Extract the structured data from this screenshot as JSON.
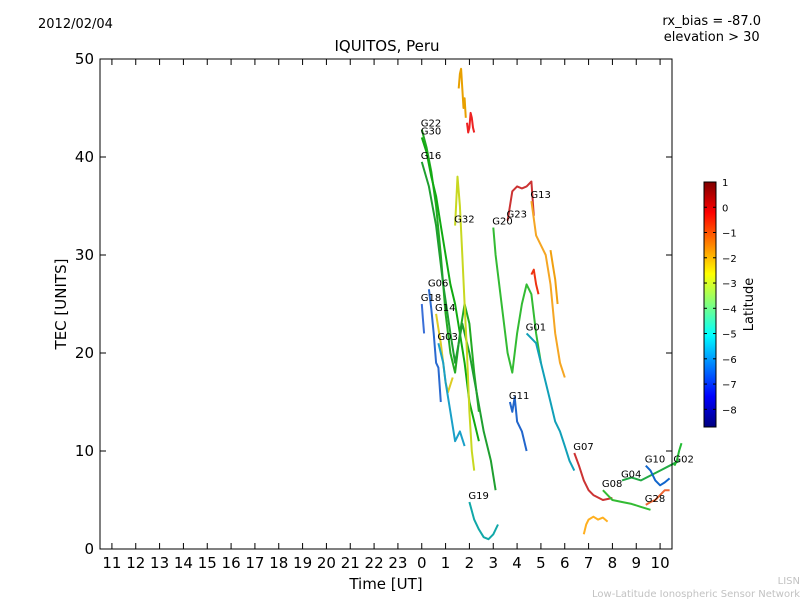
{
  "header": {
    "date": "2012/02/04",
    "title": "IQUITOS, Peru",
    "notes": [
      "rx_bias = -87.0",
      "elevation > 30"
    ]
  },
  "footer": [
    "LISN",
    "Low-Latitude Ionospheric Sensor Network"
  ],
  "chart_data": {
    "type": "line",
    "title": "IQUITOS, Peru",
    "xlabel": "Time [UT]",
    "ylabel": "TEC [UNITS]",
    "x_tick_labels": [
      "11",
      "12",
      "13",
      "14",
      "15",
      "16",
      "17",
      "18",
      "19",
      "20",
      "21",
      "22",
      "23",
      "0",
      "1",
      "2",
      "3",
      "4",
      "5",
      "6",
      "7",
      "8",
      "9",
      "10"
    ],
    "ylim": [
      0,
      50
    ],
    "y_ticks": [
      0,
      10,
      20,
      30,
      40,
      50
    ],
    "grid": false,
    "colorbar": {
      "label": "Latitude",
      "range": [
        -8.7,
        1.0
      ],
      "ticks": [
        1,
        0,
        -1,
        -2,
        -3,
        -4,
        -5,
        -6,
        -7,
        -8
      ],
      "colors": [
        "#00007f",
        "#0000ff",
        "#007fff",
        "#00ffff",
        "#7fff7f",
        "#ffff00",
        "#ff7f00",
        "#ff0000",
        "#7f0000"
      ]
    },
    "series": [
      {
        "name": "G22",
        "color": "#22aa22",
        "points": [
          [
            0.0,
            42.8
          ],
          [
            0.2,
            41.0
          ],
          [
            0.4,
            38.5
          ],
          [
            0.6,
            35.0
          ],
          [
            0.8,
            30.0
          ],
          [
            1.0,
            24.0
          ],
          [
            1.2,
            20.0
          ],
          [
            1.4,
            18.0
          ],
          [
            1.6,
            22.0
          ],
          [
            1.8,
            25.0
          ],
          [
            2.0,
            23.0
          ],
          [
            2.2,
            18.0
          ],
          [
            2.4,
            14.0
          ]
        ]
      },
      {
        "name": "G30",
        "color": "#11aa11",
        "points": [
          [
            0.0,
            42.0
          ],
          [
            0.2,
            40.5
          ],
          [
            0.4,
            38.0
          ],
          [
            0.6,
            36.0
          ],
          [
            0.8,
            33.0
          ],
          [
            1.0,
            30.0
          ],
          [
            1.2,
            27.0
          ],
          [
            1.4,
            25.0
          ],
          [
            1.6,
            22.0
          ],
          [
            1.8,
            19.0
          ],
          [
            2.0,
            15.0
          ],
          [
            2.2,
            13.0
          ],
          [
            2.4,
            11.0
          ]
        ]
      },
      {
        "name": "G16",
        "color": "#1f9f30",
        "points": [
          [
            0.0,
            39.5
          ],
          [
            0.3,
            37.0
          ],
          [
            0.6,
            33.0
          ],
          [
            0.9,
            27.0
          ],
          [
            1.2,
            22.0
          ],
          [
            1.4,
            19.0
          ],
          [
            1.7,
            23.0
          ],
          [
            2.0,
            20.0
          ],
          [
            2.3,
            16.0
          ],
          [
            2.6,
            12.0
          ],
          [
            2.9,
            9.0
          ],
          [
            3.1,
            6.0
          ]
        ]
      },
      {
        "name": "G32",
        "color": "#c8d820",
        "points": [
          [
            1.4,
            33.0
          ],
          [
            1.5,
            38.0
          ],
          [
            1.6,
            35.0
          ],
          [
            1.7,
            30.0
          ],
          [
            1.8,
            25.0
          ],
          [
            1.9,
            20.0
          ],
          [
            2.0,
            14.0
          ],
          [
            2.1,
            10.0
          ],
          [
            2.2,
            8.0
          ]
        ]
      },
      {
        "name": "G20",
        "color": "#33bb33",
        "points": [
          [
            3.0,
            32.8
          ],
          [
            3.1,
            30.0
          ],
          [
            3.2,
            28.0
          ],
          [
            3.4,
            24.0
          ],
          [
            3.6,
            20.0
          ],
          [
            3.8,
            18.0
          ],
          [
            4.0,
            22.0
          ],
          [
            4.2,
            25.0
          ],
          [
            4.4,
            27.0
          ],
          [
            4.6,
            26.0
          ],
          [
            4.8,
            22.0
          ],
          [
            5.0,
            19.0
          ]
        ]
      },
      {
        "name": "G23",
        "color": "#cc3333",
        "points": [
          [
            3.6,
            33.5
          ],
          [
            3.8,
            36.5
          ],
          [
            4.0,
            37.0
          ],
          [
            4.2,
            36.8
          ],
          [
            4.4,
            37.0
          ],
          [
            4.6,
            37.5
          ],
          [
            4.7,
            34.0
          ]
        ]
      },
      {
        "name": "G13",
        "color": "#f5a623",
        "points": [
          [
            4.6,
            35.5
          ],
          [
            4.8,
            32.0
          ],
          [
            5.0,
            31.0
          ],
          [
            5.2,
            30.0
          ],
          [
            5.4,
            27.0
          ],
          [
            5.6,
            22.0
          ],
          [
            5.8,
            19.0
          ],
          [
            6.0,
            17.5
          ]
        ]
      },
      {
        "name": "G06",
        "color": "#2a6ad0",
        "points": [
          [
            0.3,
            26.5
          ],
          [
            0.4,
            24.5
          ],
          [
            0.5,
            22.0
          ],
          [
            0.6,
            19.0
          ],
          [
            0.7,
            18.5
          ],
          [
            0.8,
            15.0
          ]
        ]
      },
      {
        "name": "G18",
        "color": "#3a6fd8",
        "points": [
          [
            0.0,
            25.0
          ],
          [
            0.05,
            23.5
          ],
          [
            0.1,
            22.0
          ]
        ]
      },
      {
        "name": "G14",
        "color": "#ddcc22",
        "points": [
          [
            0.6,
            24.0
          ],
          [
            0.7,
            22.5
          ],
          [
            0.8,
            21.0
          ],
          [
            0.9,
            19.0
          ],
          [
            1.0,
            17.0
          ],
          [
            1.1,
            16.0
          ],
          [
            1.3,
            17.5
          ]
        ]
      },
      {
        "name": "G03",
        "color": "#1aa0c8",
        "points": [
          [
            0.7,
            21.0
          ],
          [
            0.9,
            19.0
          ],
          [
            1.0,
            17.0
          ],
          [
            1.2,
            14.0
          ],
          [
            1.4,
            11.0
          ],
          [
            1.6,
            12.0
          ],
          [
            1.8,
            10.5
          ]
        ]
      },
      {
        "name": "G01",
        "color": "#11a0b8",
        "points": [
          [
            4.4,
            22.0
          ],
          [
            4.6,
            21.5
          ],
          [
            4.8,
            21.0
          ],
          [
            5.0,
            19.0
          ],
          [
            5.2,
            17.0
          ],
          [
            5.4,
            15.0
          ],
          [
            5.6,
            13.0
          ],
          [
            5.8,
            12.0
          ],
          [
            6.0,
            10.5
          ],
          [
            6.2,
            9.0
          ],
          [
            6.4,
            8.0
          ]
        ]
      },
      {
        "name": "G11",
        "color": "#2266cc",
        "points": [
          [
            3.7,
            15.0
          ],
          [
            3.8,
            14.0
          ],
          [
            3.9,
            15.5
          ],
          [
            4.0,
            13.0
          ],
          [
            4.2,
            12.0
          ],
          [
            4.4,
            10.0
          ]
        ]
      },
      {
        "name": "G19",
        "color": "#11a8a8",
        "points": [
          [
            2.0,
            4.8
          ],
          [
            2.2,
            3.0
          ],
          [
            2.4,
            2.0
          ],
          [
            2.6,
            1.2
          ],
          [
            2.8,
            1.0
          ],
          [
            3.0,
            1.5
          ],
          [
            3.2,
            2.5
          ]
        ]
      },
      {
        "name": "G07",
        "color": "#cc3333",
        "points": [
          [
            6.4,
            9.8
          ],
          [
            6.6,
            8.5
          ],
          [
            6.8,
            7.0
          ],
          [
            7.0,
            6.0
          ],
          [
            7.2,
            5.5
          ],
          [
            7.6,
            5.0
          ],
          [
            8.0,
            5.2
          ]
        ]
      },
      {
        "name": "G08",
        "color": "#33bb33",
        "points": [
          [
            7.6,
            6.0
          ],
          [
            7.8,
            5.5
          ],
          [
            8.0,
            5.0
          ],
          [
            8.4,
            4.8
          ],
          [
            8.8,
            4.6
          ],
          [
            9.2,
            4.3
          ],
          [
            9.6,
            4.0
          ]
        ]
      },
      {
        "name": "G04",
        "color": "#22aa44",
        "points": [
          [
            8.4,
            7.0
          ],
          [
            8.8,
            7.3
          ],
          [
            9.2,
            7.0
          ],
          [
            9.6,
            7.5
          ],
          [
            10.0,
            8.0
          ],
          [
            10.4,
            8.5
          ],
          [
            10.8,
            9.0
          ]
        ]
      },
      {
        "name": "G10",
        "color": "#1166cc",
        "points": [
          [
            9.4,
            8.5
          ],
          [
            9.6,
            8.0
          ],
          [
            9.8,
            7.0
          ],
          [
            10.0,
            6.5
          ],
          [
            10.2,
            6.8
          ],
          [
            10.4,
            7.2
          ]
        ]
      },
      {
        "name": "G02",
        "color": "#22bb33",
        "points": [
          [
            10.6,
            8.5
          ],
          [
            10.7,
            9.0
          ],
          [
            10.8,
            10.0
          ],
          [
            10.9,
            10.8
          ]
        ]
      },
      {
        "name": "G28",
        "color": "#ee6633",
        "points": [
          [
            9.4,
            4.5
          ],
          [
            9.6,
            4.8
          ],
          [
            9.8,
            5.0
          ],
          [
            10.0,
            5.5
          ],
          [
            10.2,
            6.0
          ],
          [
            10.4,
            6.0
          ]
        ]
      },
      {
        "name": "",
        "color": "#e8a000",
        "points": [
          [
            1.55,
            47.0
          ],
          [
            1.6,
            48.5
          ],
          [
            1.65,
            49.0
          ],
          [
            1.7,
            47.0
          ],
          [
            1.75,
            45.0
          ],
          [
            1.8,
            46.0
          ],
          [
            1.85,
            44.0
          ]
        ]
      },
      {
        "name": "",
        "color": "#ee2222",
        "points": [
          [
            1.9,
            43.5
          ],
          [
            1.95,
            42.5
          ],
          [
            2.0,
            43.0
          ],
          [
            2.05,
            44.5
          ],
          [
            2.1,
            44.0
          ],
          [
            2.15,
            43.0
          ],
          [
            2.2,
            42.5
          ]
        ]
      },
      {
        "name": "",
        "color": "#ee3311",
        "points": [
          [
            4.6,
            28.0
          ],
          [
            4.7,
            28.5
          ],
          [
            4.8,
            27.0
          ],
          [
            4.9,
            26.0
          ]
        ]
      },
      {
        "name": "",
        "color": "#ffb020",
        "points": [
          [
            6.8,
            1.5
          ],
          [
            6.9,
            2.5
          ],
          [
            7.0,
            3.0
          ],
          [
            7.2,
            3.3
          ],
          [
            7.4,
            3.0
          ],
          [
            7.6,
            3.2
          ],
          [
            7.8,
            2.8
          ]
        ]
      },
      {
        "name": "",
        "color": "#f0a010",
        "points": [
          [
            5.4,
            30.5
          ],
          [
            5.5,
            29.0
          ],
          [
            5.6,
            27.5
          ],
          [
            5.7,
            25.0
          ]
        ]
      }
    ]
  }
}
